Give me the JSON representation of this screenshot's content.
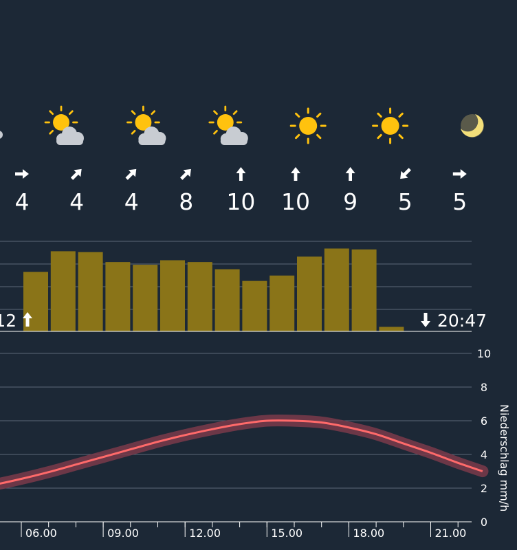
{
  "colors": {
    "background": "#1c2836",
    "gridline": "#5b6878",
    "bar": "#8a7418",
    "curve": "#ff6a6a",
    "curve_band": "#7a3a4a",
    "sun": "#ffc20e",
    "cloud": "#c8ccd2",
    "moon": "#f3df7a"
  },
  "weather_icons": [
    {
      "icon": "partly-cloudy-icon"
    },
    {
      "icon": "partly-cloudy-icon"
    },
    {
      "icon": "partly-cloudy-icon"
    },
    {
      "icon": "sun-icon"
    },
    {
      "icon": "sun-icon"
    },
    {
      "icon": "moon-icon"
    }
  ],
  "wind": [
    {
      "dir_deg": 90,
      "speed": "4"
    },
    {
      "dir_deg": 45,
      "speed": "4"
    },
    {
      "dir_deg": 45,
      "speed": "4"
    },
    {
      "dir_deg": 45,
      "speed": "8"
    },
    {
      "dir_deg": 0,
      "speed": "10"
    },
    {
      "dir_deg": 0,
      "speed": "10"
    },
    {
      "dir_deg": 0,
      "speed": "9"
    },
    {
      "dir_deg": 225,
      "speed": "5"
    },
    {
      "dir_deg": 90,
      "speed": "5"
    }
  ],
  "sunrise": {
    "label": "12",
    "icon": "arrow-up-icon"
  },
  "sunset": {
    "label": "20:47",
    "icon": "arrow-down-icon"
  },
  "chart_data": [
    {
      "type": "bar",
      "values": [
        0.66,
        0.89,
        0.88,
        0.77,
        0.74,
        0.79,
        0.77,
        0.69,
        0.56,
        0.62,
        0.83,
        0.92,
        0.91,
        0.05
      ],
      "ylim": [
        0,
        1
      ],
      "grid": true
    },
    {
      "type": "line",
      "ylabel": "Niederschlag mm/h",
      "yticks": [
        "0",
        "2",
        "4",
        "6",
        "8",
        "10"
      ],
      "ylim": [
        0,
        10
      ],
      "x_ticks": [
        "06.00",
        "09.00",
        "12.00",
        "15.00",
        "18.00",
        "21.00"
      ],
      "x_hours": [
        -0.2,
        1,
        2,
        3,
        4,
        5,
        6,
        7,
        8,
        9,
        10,
        11,
        12,
        13,
        14,
        15,
        16,
        17,
        18,
        19,
        20,
        21,
        21.9
      ],
      "values": [
        1.5,
        1.6,
        1.75,
        1.95,
        2.2,
        2.55,
        2.95,
        3.4,
        3.85,
        4.3,
        4.75,
        5.15,
        5.5,
        5.8,
        6.0,
        6.0,
        5.9,
        5.6,
        5.2,
        4.65,
        4.1,
        3.5,
        3.0
      ],
      "band": 0.35,
      "grid": true
    }
  ]
}
